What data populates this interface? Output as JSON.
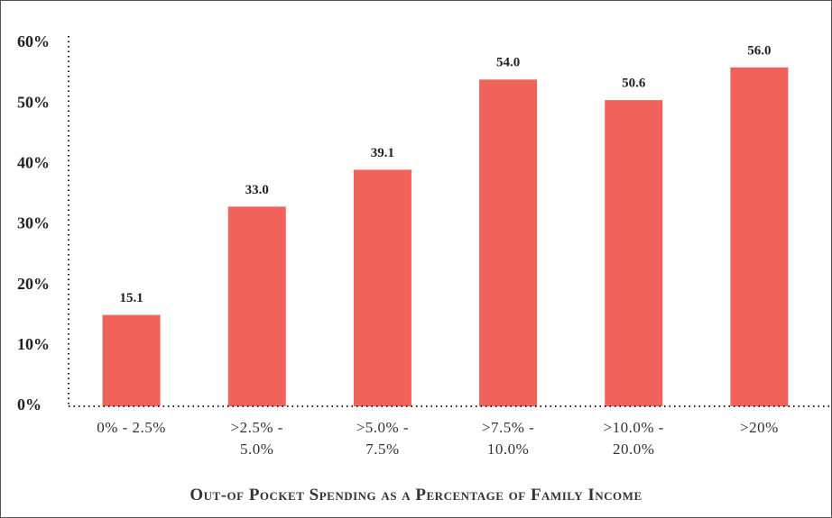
{
  "chart_data": {
    "type": "bar",
    "title": "Out-of Pocket Spending as a Percentage of Family Income",
    "categories": [
      "0% - 2.5%",
      ">2.5% - 5.0%",
      ">5.0% - 7.5%",
      ">7.5% - 10.0%",
      ">10.0% - 20.0%",
      ">20%"
    ],
    "values": [
      15.1,
      33.0,
      39.1,
      54.0,
      50.6,
      56.0
    ],
    "value_labels": [
      "15.1",
      "33.0",
      "39.1",
      "54.0",
      "50.6",
      "56.0"
    ],
    "color": "#f0625a",
    "ylim": [
      0,
      60
    ],
    "yticks": [
      {
        "value": 0,
        "label": "0%"
      },
      {
        "value": 10,
        "label": "10%"
      },
      {
        "value": 20,
        "label": "20%"
      },
      {
        "value": 30,
        "label": "30%"
      },
      {
        "value": 40,
        "label": "40%"
      },
      {
        "value": 50,
        "label": "50%"
      },
      {
        "value": 60,
        "label": "60%"
      }
    ],
    "grid": false
  }
}
